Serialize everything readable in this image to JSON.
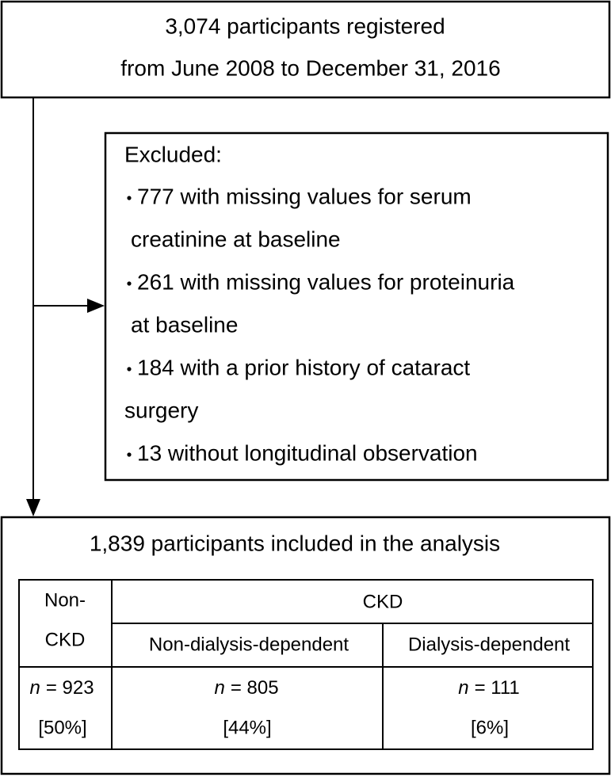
{
  "top_box": {
    "lines": [
      "3,074 participants registered",
      "from June 2008 to December 31, 2016"
    ]
  },
  "excluded_box": {
    "title": "Excluded:",
    "items": [
      {
        "lines": [
          "777 with missing values for serum",
          "creatinine at baseline"
        ]
      },
      {
        "lines": [
          "261 with missing values for proteinuria",
          "at baseline"
        ]
      },
      {
        "lines": [
          "184 with a prior history of cataract",
          "surgery"
        ]
      },
      {
        "lines": [
          "13 without longitudinal observation"
        ]
      }
    ]
  },
  "bottom_box": {
    "title": "1,839 participants included in the analysis",
    "table": {
      "first_header": [
        "Non-",
        "CKD"
      ],
      "group_header": "CKD",
      "sub_headers": [
        "Non-dialysis-dependent",
        "Dialysis-dependent"
      ],
      "cells": [
        {
          "variable": "n",
          "count": "= 923",
          "percent": "[50%]"
        },
        {
          "variable": "n",
          "count": "= 805",
          "percent": "[44%]"
        },
        {
          "variable": "n",
          "count": "= 111",
          "percent": "[6%]"
        }
      ]
    }
  }
}
